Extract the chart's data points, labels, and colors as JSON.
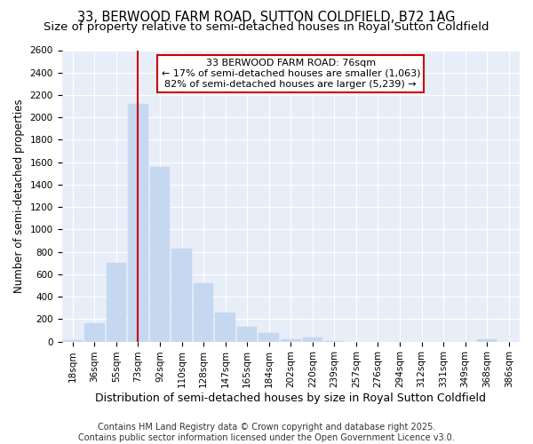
{
  "title": "33, BERWOOD FARM ROAD, SUTTON COLDFIELD, B72 1AG",
  "subtitle": "Size of property relative to semi-detached houses in Royal Sutton Coldfield",
  "xlabel": "Distribution of semi-detached houses by size in Royal Sutton Coldfield",
  "ylabel": "Number of semi-detached properties",
  "categories": [
    "18sqm",
    "36sqm",
    "55sqm",
    "73sqm",
    "92sqm",
    "110sqm",
    "128sqm",
    "147sqm",
    "165sqm",
    "184sqm",
    "202sqm",
    "220sqm",
    "239sqm",
    "257sqm",
    "276sqm",
    "294sqm",
    "312sqm",
    "331sqm",
    "349sqm",
    "368sqm",
    "386sqm"
  ],
  "values": [
    10,
    160,
    700,
    2120,
    1560,
    830,
    520,
    255,
    130,
    75,
    20,
    40,
    3,
    0,
    0,
    0,
    0,
    0,
    0,
    20,
    0
  ],
  "bar_color": "#c5d8f0",
  "bar_edgecolor": "#c5d8f0",
  "vline_x_idx": 3,
  "vline_color": "#cc0000",
  "annotation_line1": "33 BERWOOD FARM ROAD: 76sqm",
  "annotation_line2": "← 17% of semi-detached houses are smaller (1,063)",
  "annotation_line3": "82% of semi-detached houses are larger (5,239) →",
  "annotation_box_color": "#ffffff",
  "annotation_box_edgecolor": "#cc0000",
  "ylim": [
    0,
    2600
  ],
  "yticks": [
    0,
    200,
    400,
    600,
    800,
    1000,
    1200,
    1400,
    1600,
    1800,
    2000,
    2200,
    2400,
    2600
  ],
  "background_color": "#ffffff",
  "plot_bg_color": "#e8eef8",
  "grid_color": "#ffffff",
  "footer_text": "Contains HM Land Registry data © Crown copyright and database right 2025.\nContains public sector information licensed under the Open Government Licence v3.0.",
  "title_fontsize": 10.5,
  "subtitle_fontsize": 9.5,
  "xlabel_fontsize": 9,
  "ylabel_fontsize": 8.5,
  "tick_fontsize": 7.5,
  "annotation_fontsize": 8,
  "footer_fontsize": 7
}
